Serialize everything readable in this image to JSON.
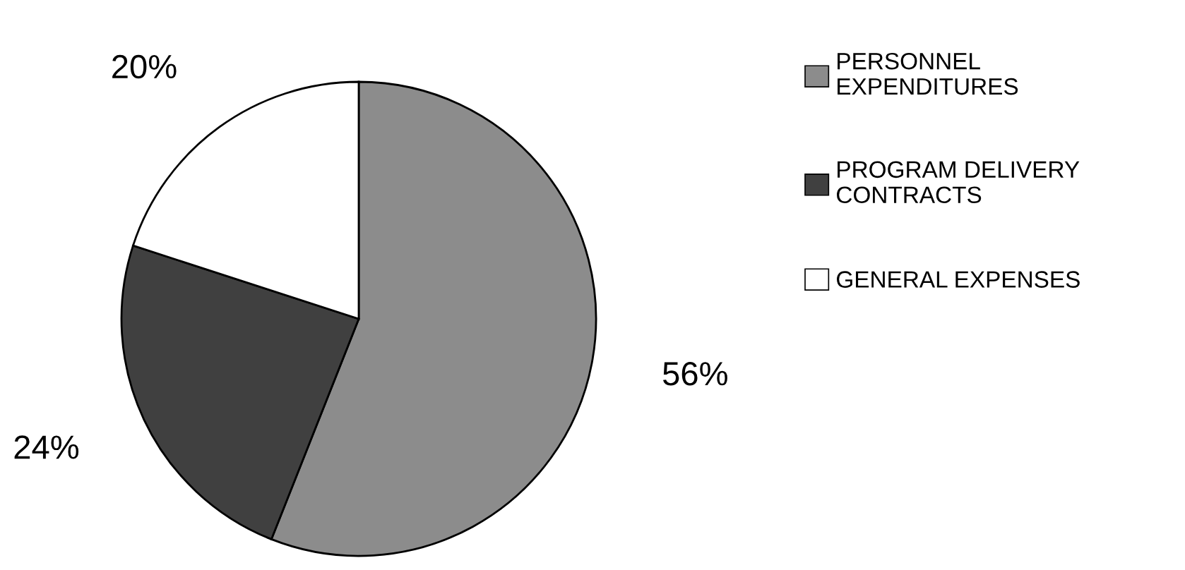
{
  "chart_data": {
    "type": "pie",
    "categories": [
      "PERSONNEL\nEXPENDITURES",
      "PROGRAM DELIVERY\nCONTRACTS",
      "GENERAL EXPENSES"
    ],
    "values": [
      56,
      24,
      20
    ],
    "colors": [
      "#8c8c8c",
      "#404040",
      "#ffffff"
    ],
    "value_labels": [
      "56%",
      "24%",
      "20%"
    ],
    "legend": "right"
  }
}
